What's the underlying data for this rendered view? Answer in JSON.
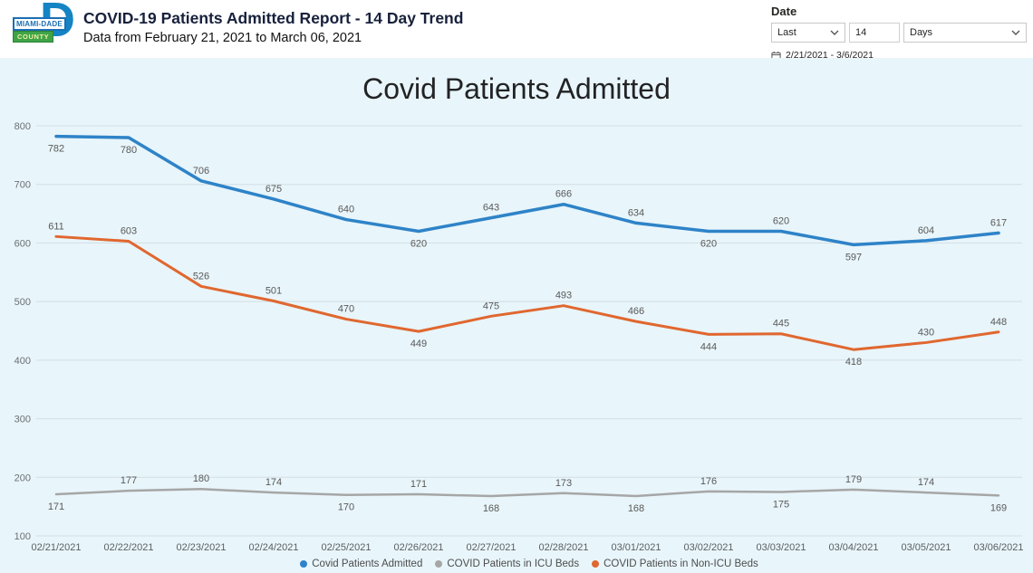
{
  "header": {
    "logo": {
      "monogram": "D",
      "line1": "MIAMI-DADE",
      "line2": "COUNTY"
    },
    "title": "COVID-19 Patients Admitted Report - 14 Day Trend",
    "subtitle": "Data from February 21, 2021 to March 06, 2021"
  },
  "date_filter": {
    "label": "Date",
    "mode_value": "Last",
    "number_value": "14",
    "unit_value": "Days",
    "range_text": "2/21/2021 - 3/6/2021"
  },
  "chart_data": {
    "type": "line",
    "title": "Covid Patients Admitted",
    "background": "#E8F5FA",
    "gridline_color": "#D2DEE3",
    "label_color": "#595959",
    "axis_label_color": "#6a7075",
    "grid": true,
    "legend_position": "bottom",
    "ylim": [
      100,
      800
    ],
    "yticks": [
      100,
      200,
      300,
      400,
      500,
      600,
      700,
      800
    ],
    "categories": [
      "02/21/2021",
      "02/22/2021",
      "02/23/2021",
      "02/24/2021",
      "02/25/2021",
      "02/26/2021",
      "02/27/2021",
      "02/28/2021",
      "03/01/2021",
      "03/02/2021",
      "03/03/2021",
      "03/04/2021",
      "03/05/2021",
      "03/06/2021"
    ],
    "series": [
      {
        "name": "Covid Patients Admitted",
        "color": "#2E83C8",
        "stroke_width": 3.5,
        "values": [
          782,
          780,
          706,
          675,
          640,
          620,
          643,
          666,
          634,
          620,
          620,
          597,
          604,
          617
        ],
        "label_pos": [
          "below",
          "below",
          "above",
          "above",
          "above",
          "below",
          "above",
          "above",
          "above",
          "below",
          "above",
          "below",
          "above",
          "above"
        ]
      },
      {
        "name": "COVID Patients in ICU Beds",
        "color": "#A6A6A6",
        "stroke_width": 2.5,
        "values": [
          171,
          177,
          180,
          174,
          170,
          171,
          168,
          173,
          168,
          176,
          175,
          179,
          174,
          169
        ],
        "label_pos": [
          "below",
          "above",
          "above",
          "above",
          "below",
          "above",
          "below",
          "above",
          "below",
          "above",
          "below",
          "above",
          "above",
          "below"
        ]
      },
      {
        "name": "COVID Patients in Non-ICU Beds",
        "color": "#E0672F",
        "stroke_width": 3,
        "values": [
          611,
          603,
          526,
          501,
          470,
          449,
          475,
          493,
          466,
          444,
          445,
          418,
          430,
          448
        ],
        "label_pos": [
          "above",
          "above",
          "above",
          "above",
          "above",
          "below",
          "above",
          "above",
          "above",
          "below",
          "above",
          "below",
          "above",
          "above"
        ]
      }
    ]
  }
}
